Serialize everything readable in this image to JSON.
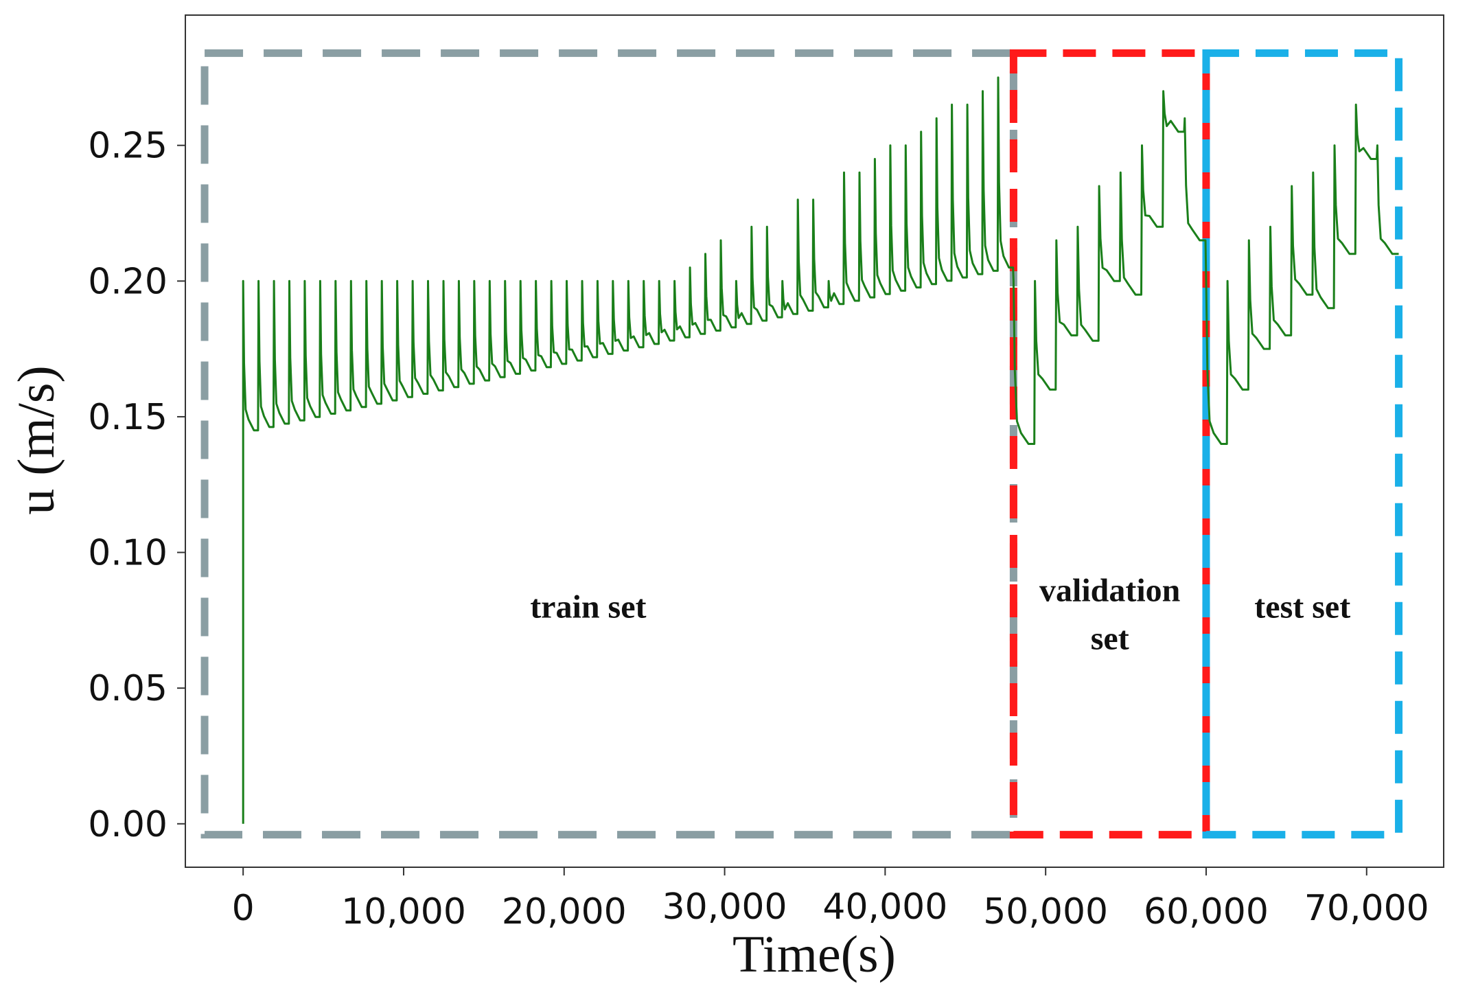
{
  "chart_data": {
    "type": "line",
    "title": "",
    "xlabel": "Time(s)",
    "ylabel": "u (m/s)",
    "xlim": [
      -3600,
      74800
    ],
    "ylim": [
      -0.016,
      0.298
    ],
    "x_ticks": [
      0,
      10000,
      20000,
      30000,
      40000,
      50000,
      60000,
      70000
    ],
    "x_tick_labels": [
      "0",
      "10,000",
      "20,000",
      "30,000",
      "40,000",
      "50,000",
      "60,000",
      "70,000"
    ],
    "y_ticks": [
      0.0,
      0.05,
      0.1,
      0.15,
      0.2,
      0.25
    ],
    "y_tick_labels": [
      "0.00",
      "0.05",
      "0.10",
      "0.15",
      "0.20",
      "0.25"
    ],
    "grid": false,
    "line_color": "#1a7f1a",
    "regions": [
      {
        "label": "train set",
        "x_start": -2400,
        "x_end": 48000,
        "y_bottom": -0.004,
        "y_top": 0.284,
        "color": "#8a9ea3"
      },
      {
        "label": "validation set",
        "label_lines": [
          "validation",
          "set"
        ],
        "x_start": 48000,
        "x_end": 60000,
        "y_bottom": -0.004,
        "y_top": 0.284,
        "color": "#ff1a1a"
      },
      {
        "label": "test set",
        "x_start": 60000,
        "x_end": 72000,
        "y_bottom": -0.004,
        "y_top": 0.284,
        "color": "#1ab0e8"
      }
    ],
    "segments": [
      {
        "x_start": 0,
        "x_end": 48000,
        "count": 50,
        "peaks": [
          0.2,
          0.2,
          0.2,
          0.2,
          0.2,
          0.2,
          0.2,
          0.2,
          0.2,
          0.2,
          0.2,
          0.2,
          0.2,
          0.2,
          0.2,
          0.2,
          0.2,
          0.2,
          0.2,
          0.2,
          0.2,
          0.2,
          0.2,
          0.2,
          0.2,
          0.2,
          0.2,
          0.2,
          0.2,
          0.205,
          0.21,
          0.215,
          0.2,
          0.22,
          0.22,
          0.2,
          0.23,
          0.23,
          0.2,
          0.24,
          0.24,
          0.245,
          0.25,
          0.25,
          0.255,
          0.26,
          0.265,
          0.265,
          0.27,
          0.275
        ],
        "mins_start": 0.145,
        "mins_end": 0.205
      },
      {
        "x_start": 48000,
        "x_end": 60000,
        "peaks": [
          0.2,
          0.2,
          0.215,
          0.22,
          0.235,
          0.24,
          0.25,
          0.27,
          0.26
        ],
        "mins": [
          0.14,
          0.16,
          0.18,
          0.178,
          0.2,
          0.195,
          0.22,
          0.255,
          0.215
        ]
      },
      {
        "x_start": 60000,
        "x_end": 72000,
        "peaks": [
          0.2,
          0.2,
          0.215,
          0.22,
          0.235,
          0.24,
          0.25,
          0.265,
          0.25
        ],
        "mins": [
          0.14,
          0.16,
          0.175,
          0.18,
          0.195,
          0.19,
          0.21,
          0.245,
          0.21
        ]
      }
    ],
    "start_point": {
      "x": 0,
      "y": 0.0
    },
    "end_value": 0.21
  }
}
